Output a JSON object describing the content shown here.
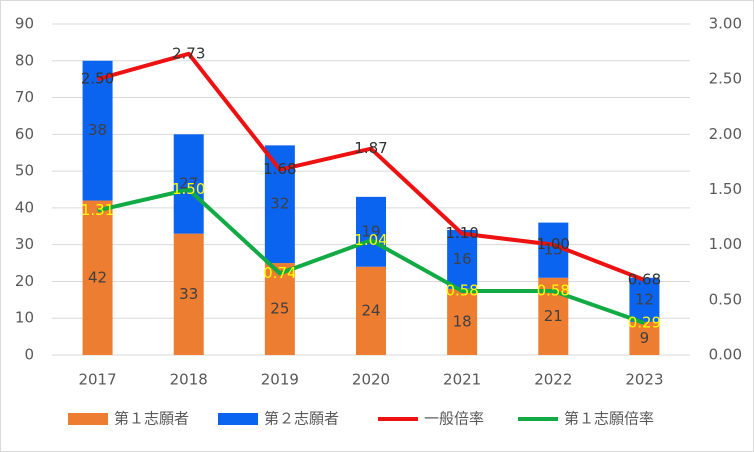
{
  "chart_data": {
    "type": "combo",
    "categories": [
      "2017",
      "2018",
      "2019",
      "2020",
      "2021",
      "2022",
      "2023"
    ],
    "series": [
      {
        "name": "第１志願者",
        "type": "bar",
        "color": "#ed7d31",
        "values": [
          42,
          33,
          25,
          24,
          18,
          21,
          9
        ]
      },
      {
        "name": "第２志願者",
        "type": "bar",
        "color": "#0a64f0",
        "values": [
          38,
          27,
          32,
          19,
          16,
          15,
          12
        ]
      },
      {
        "name": "一般倍率",
        "type": "line",
        "axis": "y2",
        "color": "#ee1111",
        "label_color": "#333333",
        "values": [
          2.5,
          2.73,
          1.68,
          1.87,
          1.1,
          1.0,
          0.68
        ],
        "value_labels": [
          "2.50",
          "2.73",
          "1.68",
          "1.87",
          "1.10",
          "1.00",
          "0.68"
        ]
      },
      {
        "name": "第１志願倍率",
        "type": "line",
        "axis": "y2",
        "color": "#11aa44",
        "label_color": "#ffff00",
        "values": [
          1.31,
          1.5,
          0.74,
          1.04,
          0.58,
          0.58,
          0.29
        ],
        "value_labels": [
          "1.31",
          "1.50",
          "0.74",
          "1.04",
          "0.58",
          "0.58",
          "0.29"
        ]
      }
    ],
    "stacked": true,
    "ylim": [
      0,
      90
    ],
    "yticks": [
      0,
      10,
      20,
      30,
      40,
      50,
      60,
      70,
      80,
      90
    ],
    "y2lim": [
      0,
      3
    ],
    "y2ticks": [
      {
        "value": 0,
        "label": "0.00"
      },
      {
        "value": 0.5,
        "label": "0.50"
      },
      {
        "value": 1,
        "label": "1.00"
      },
      {
        "value": 1.5,
        "label": "1.50"
      },
      {
        "value": 2,
        "label": "2.00"
      },
      {
        "value": 2.5,
        "label": "2.50"
      },
      {
        "value": 3,
        "label": "3.00"
      }
    ],
    "grid": true,
    "legend": "bottom"
  }
}
